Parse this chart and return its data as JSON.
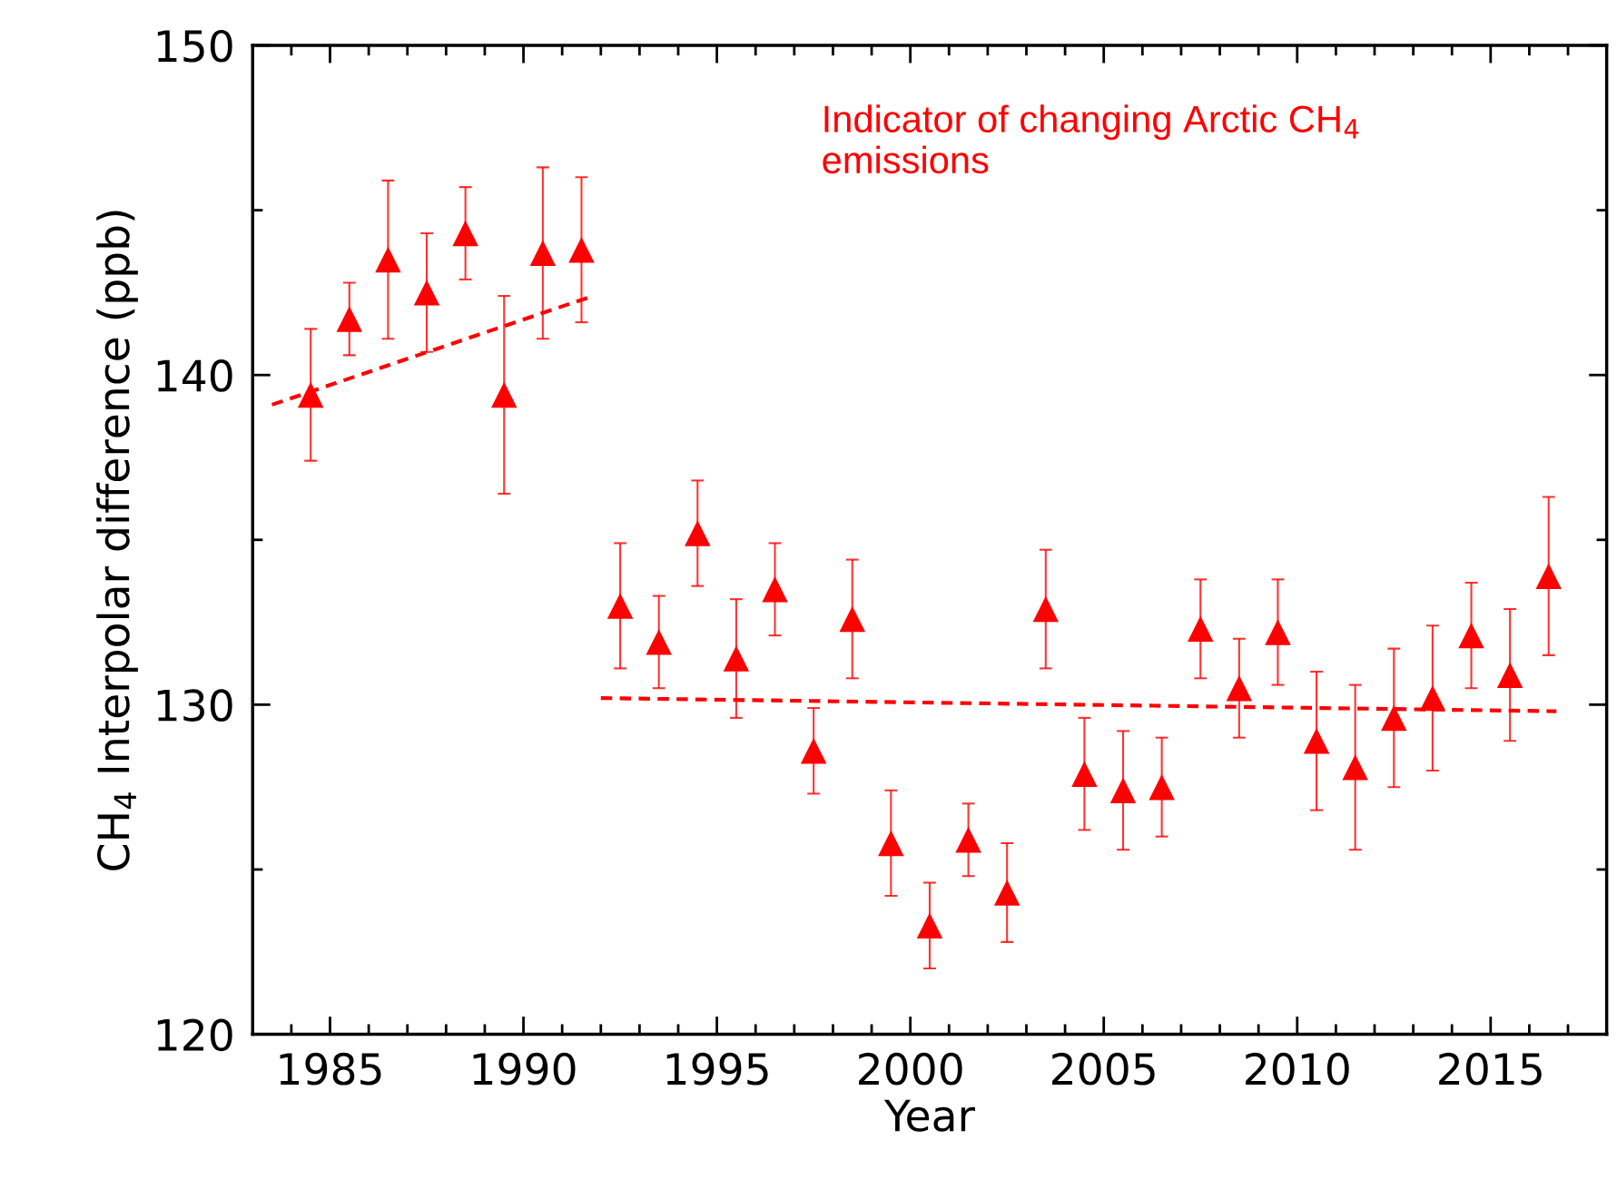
{
  "chart_data": {
    "type": "scatter",
    "xlabel": "Year",
    "ylabel": "CH$_{4}$ Interpolar difference (ppb)",
    "annotations": [
      "Indicator of changing Arctic CH$_{4}$\nemissions"
    ],
    "xlim": [
      1983,
      2018
    ],
    "ylim": [
      120,
      150
    ],
    "xticks": [
      {
        "value": 1984,
        "label": null
      },
      1985,
      {
        "value": 1986,
        "label": null
      },
      {
        "value": 1987,
        "label": null
      },
      {
        "value": 1988,
        "label": null
      },
      {
        "value": 1989,
        "label": null
      },
      1990,
      {
        "value": 1991,
        "label": null
      },
      {
        "value": 1992,
        "label": null
      },
      {
        "value": 1993,
        "label": null
      },
      {
        "value": 1994,
        "label": null
      },
      1995,
      {
        "value": 1996,
        "label": null
      },
      {
        "value": 1997,
        "label": null
      },
      {
        "value": 1998,
        "label": null
      },
      {
        "value": 1999,
        "label": null
      },
      2000,
      {
        "value": 2001,
        "label": null
      },
      {
        "value": 2002,
        "label": null
      },
      {
        "value": 2003,
        "label": null
      },
      {
        "value": 2004,
        "label": null
      },
      2005,
      {
        "value": 2006,
        "label": null
      },
      {
        "value": 2007,
        "label": null
      },
      {
        "value": 2008,
        "label": null
      },
      {
        "value": 2009,
        "label": null
      },
      2010,
      {
        "value": 2011,
        "label": null
      },
      {
        "value": 2012,
        "label": null
      },
      {
        "value": 2013,
        "label": null
      },
      {
        "value": 2014,
        "label": null
      },
      2015,
      {
        "value": 2016,
        "label": null
      },
      {
        "value": 2017,
        "label": null
      }
    ],
    "yticks": [
      120,
      {
        "value": 125,
        "label": null
      },
      130,
      {
        "value": 135,
        "label": null
      },
      140,
      {
        "value": 145,
        "label": null
      },
      150
    ],
    "grid": false,
    "legend": false,
    "series": [
      {
        "color": "#ff0000",
        "marker": "triangle",
        "x": [
          1984.5,
          1985.5,
          1986.5,
          1987.5,
          1988.5,
          1989.5,
          1990.5,
          1991.5,
          1992.5,
          1993.5,
          1994.5,
          1995.5,
          1996.5,
          1997.5,
          1998.5,
          1999.5,
          2000.5,
          2001.5,
          2002.5,
          2003.5,
          2004.5,
          2005.5,
          2006.5,
          2007.5,
          2008.5,
          2009.5,
          2010.5,
          2011.5,
          2012.5,
          2013.5,
          2014.5,
          2015.5,
          2016.5
        ],
        "values": [
          139.4,
          141.7,
          143.5,
          142.5,
          144.3,
          139.4,
          143.7,
          143.8,
          133.0,
          131.9,
          135.2,
          131.4,
          133.5,
          128.6,
          132.6,
          125.8,
          123.3,
          125.9,
          124.3,
          132.9,
          127.9,
          127.4,
          127.5,
          132.3,
          130.5,
          132.2,
          128.9,
          128.1,
          129.6,
          130.2,
          132.1,
          130.9,
          133.9
        ],
        "errors": [
          2.0,
          1.1,
          2.4,
          1.8,
          1.4,
          3.0,
          2.6,
          2.2,
          1.9,
          1.4,
          1.6,
          1.8,
          1.4,
          1.3,
          1.8,
          1.6,
          1.3,
          1.1,
          1.5,
          1.8,
          1.7,
          1.8,
          1.5,
          1.5,
          1.5,
          1.6,
          2.1,
          2.5,
          2.1,
          2.2,
          1.6,
          2.0,
          2.4
        ]
      },
      {
        "type": "line",
        "color": "#ff0000",
        "line_style": "dashed",
        "x": [
          1983.5,
          1991.8
        ],
        "values": [
          139.1,
          142.4
        ]
      },
      {
        "type": "line",
        "color": "#ff0000",
        "line_style": "dashed",
        "x": [
          1992.0,
          2016.7
        ],
        "values": [
          130.2,
          129.8
        ]
      }
    ]
  }
}
